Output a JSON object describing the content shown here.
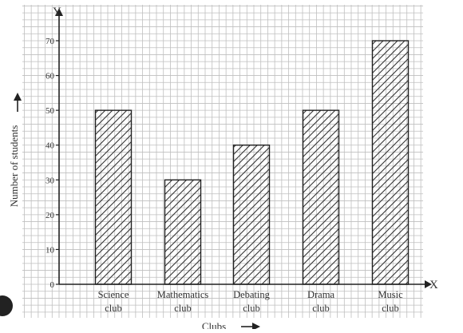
{
  "chart_data": {
    "type": "bar",
    "title": "",
    "categories": [
      {
        "line1": "Science",
        "line2": "club"
      },
      {
        "line1": "Mathematics",
        "line2": "club"
      },
      {
        "line1": "Debating",
        "line2": "club"
      },
      {
        "line1": "Drama",
        "line2": "club"
      },
      {
        "line1": "Music",
        "line2": "club"
      }
    ],
    "values": [
      50,
      30,
      40,
      50,
      70
    ],
    "ylim": [
      0,
      70
    ],
    "yticks": [
      "0",
      "10",
      "20",
      "30",
      "40",
      "50",
      "60",
      "70"
    ],
    "xlabel": "Clubs",
    "ylabel": "Number of students",
    "x_axis_letter": "X",
    "y_axis_letter": "Y",
    "grid": true,
    "bar_fill": "hatched"
  },
  "colors": {
    "grid": "#bfbfbf",
    "axis": "#222222",
    "bar_edge": "#222222",
    "hatch": "#333333",
    "text": "#333333"
  }
}
